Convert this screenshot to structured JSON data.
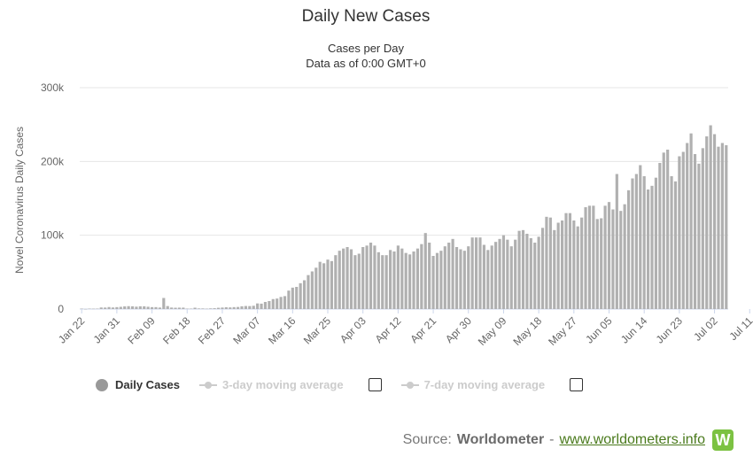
{
  "chart_data": {
    "type": "bar",
    "title": "Daily New Cases",
    "subtitle_lines": [
      "Cases per Day",
      "Data as of 0:00 GMT+0"
    ],
    "ylabel": "Novel Coronavirus Daily Cases",
    "xlabel": "",
    "ylim": [
      0,
      300000
    ],
    "yticks": [
      {
        "value": 0,
        "label": "0"
      },
      {
        "value": 100000,
        "label": "100k"
      },
      {
        "value": 200000,
        "label": "200k"
      },
      {
        "value": 300000,
        "label": "300k"
      }
    ],
    "start_date": "Jan 22",
    "xtick_labels": [
      "Jan 22",
      "Jan 31",
      "Feb 09",
      "Feb 18",
      "Feb 27",
      "Mar 07",
      "Mar 16",
      "Mar 25",
      "Apr 03",
      "Apr 12",
      "Apr 21",
      "Apr 30",
      "May 09",
      "May 18",
      "May 27",
      "Jun 05",
      "Jun 14",
      "Jun 23",
      "Jul 02",
      "Jul 11"
    ],
    "grid": true,
    "bar_color": "#b0b0b0",
    "series": [
      {
        "name": "Daily Cases",
        "values": [
          580,
          100,
          600,
          500,
          600,
          2100,
          2000,
          2700,
          2100,
          2600,
          3000,
          3600,
          3900,
          3700,
          3200,
          3700,
          3700,
          3100,
          2600,
          2600,
          2000,
          15000,
          4000,
          2000,
          1800,
          1900,
          1900,
          600,
          600,
          1800,
          800,
          800,
          500,
          900,
          1100,
          1700,
          2000,
          2400,
          2200,
          2600,
          2800,
          3700,
          4100,
          4000,
          4400,
          7600,
          7300,
          9600,
          10800,
          13500,
          14200,
          16400,
          17500,
          25000,
          29000,
          30000,
          35000,
          39000,
          46000,
          51000,
          56000,
          64000,
          62000,
          67000,
          65000,
          73000,
          79000,
          82000,
          84000,
          81000,
          73000,
          75000,
          84000,
          86000,
          90000,
          86000,
          77000,
          73000,
          73000,
          80000,
          78000,
          86000,
          82000,
          76000,
          74000,
          78000,
          82000,
          88000,
          103000,
          90000,
          72000,
          76000,
          79000,
          85000,
          90000,
          95000,
          84000,
          81000,
          79000,
          85000,
          97000,
          97000,
          97000,
          87000,
          80000,
          86000,
          91000,
          95000,
          100000,
          94000,
          85000,
          94000,
          106000,
          107000,
          102000,
          96000,
          90000,
          98000,
          110000,
          125000,
          124000,
          107000,
          117000,
          120000,
          130000,
          130000,
          120000,
          112000,
          124000,
          138000,
          140000,
          140000,
          122000,
          123000,
          140000,
          145000,
          135000,
          183000,
          133000,
          142000,
          161000,
          177000,
          183000,
          195000,
          180000,
          162000,
          167000,
          178000,
          198000,
          212000,
          216000,
          180000,
          173000,
          207000,
          213000,
          225000,
          238000,
          210000,
          197000,
          218000,
          234000,
          249000,
          237000,
          220000,
          225000,
          222000
        ]
      }
    ],
    "legend": [
      {
        "label": "Daily Cases",
        "active": true
      },
      {
        "label": "3-day moving average",
        "active": false
      },
      {
        "label": "7-day moving average",
        "active": false
      }
    ]
  },
  "source": {
    "prefix": "Source:",
    "name": "Worldometer",
    "separator": "-",
    "link": "www.worldometers.info",
    "logo_letter": "W"
  }
}
